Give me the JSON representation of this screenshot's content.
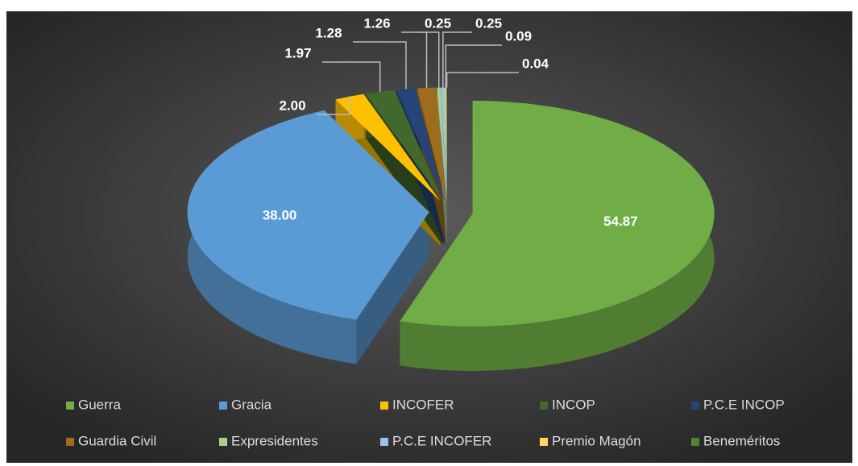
{
  "chart_data": {
    "type": "pie",
    "categories": [
      "Guerra",
      "Gracia",
      "INCOFER",
      "INCOP",
      "P.C.E INCOP",
      "Guardia Civil",
      "Expresidentes",
      "P.C.E INCOFER",
      "Premio Magón",
      "Beneméritos"
    ],
    "values": [
      54.87,
      38.0,
      2.0,
      1.97,
      1.28,
      1.26,
      0.25,
      0.25,
      0.09,
      0.04
    ],
    "value_labels": [
      "54.87",
      "38.00",
      "2.00",
      "1.97",
      "1.28",
      "1.26",
      "0.25",
      "0.25",
      "0.09",
      "0.04"
    ],
    "colors": [
      "#70ad47",
      "#5b9bd5",
      "#ffc000",
      "#43682b",
      "#264478",
      "#9e6c1e",
      "#a9d18e",
      "#9dc3e6",
      "#ffd966",
      "#548235"
    ],
    "legend": "bottom"
  }
}
